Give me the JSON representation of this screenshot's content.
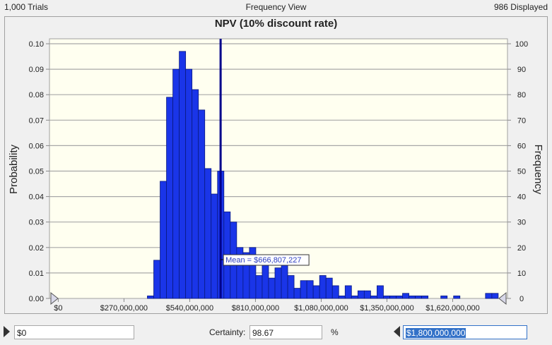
{
  "header": {
    "trials": "1,000 Trials",
    "view": "Frequency View",
    "displayed": "986 Displayed"
  },
  "footer": {
    "lower_value": "$0",
    "certainty_label": "Certainty:",
    "certainty_value": "98.67",
    "percent": "%",
    "upper_value": "$1,800,000,000"
  },
  "colors": {
    "bar": "#1a35e8",
    "bar_edge": "#0a1a80",
    "mean_line": "#00008b",
    "plot_bg": "#fffff0"
  },
  "chart_data": {
    "type": "bar",
    "title": "NPV (10% discount rate)",
    "xlabel": "",
    "ylabel": "Probability",
    "ylabel_right": "Frequency",
    "ylim": [
      0,
      0.1
    ],
    "ylim_right": [
      0,
      100
    ],
    "yticks": [
      "0.00",
      "0.01",
      "0.02",
      "0.03",
      "0.04",
      "0.05",
      "0.06",
      "0.07",
      "0.08",
      "0.09",
      "0.10"
    ],
    "yticks_right": [
      "0",
      "10",
      "20",
      "30",
      "40",
      "50",
      "60",
      "70",
      "80",
      "90",
      "100"
    ],
    "xlim": [
      -36000000,
      1845000000
    ],
    "xticks": [
      0,
      270000000,
      540000000,
      810000000,
      1080000000,
      1350000000,
      1620000000
    ],
    "xtick_labels": [
      "$0",
      "$270,000,000",
      "$540,000,000",
      "$810,000,000",
      "$1,080,000,000",
      "$1,350,000,000",
      "$1,620,000,000"
    ],
    "bin_start": 366000000,
    "bin_width": 26200000,
    "values": [
      0.001,
      0.015,
      0.046,
      0.079,
      0.09,
      0.097,
      0.09,
      0.082,
      0.074,
      0.051,
      0.041,
      0.05,
      0.034,
      0.03,
      0.02,
      0.018,
      0.02,
      0.009,
      0.013,
      0.008,
      0.012,
      0.013,
      0.009,
      0.004,
      0.007,
      0.007,
      0.005,
      0.009,
      0.008,
      0.005,
      0.001,
      0.005,
      0.001,
      0.003,
      0.003,
      0.001,
      0.005,
      0.001,
      0.001,
      0.001,
      0.002,
      0.001,
      0.001,
      0.001,
      0,
      0,
      0.001,
      0,
      0.001,
      0,
      0,
      0,
      0,
      0.002,
      0.002
    ],
    "mean": 666807227,
    "mean_label": "Mean = $666,807,227",
    "grid": true
  }
}
